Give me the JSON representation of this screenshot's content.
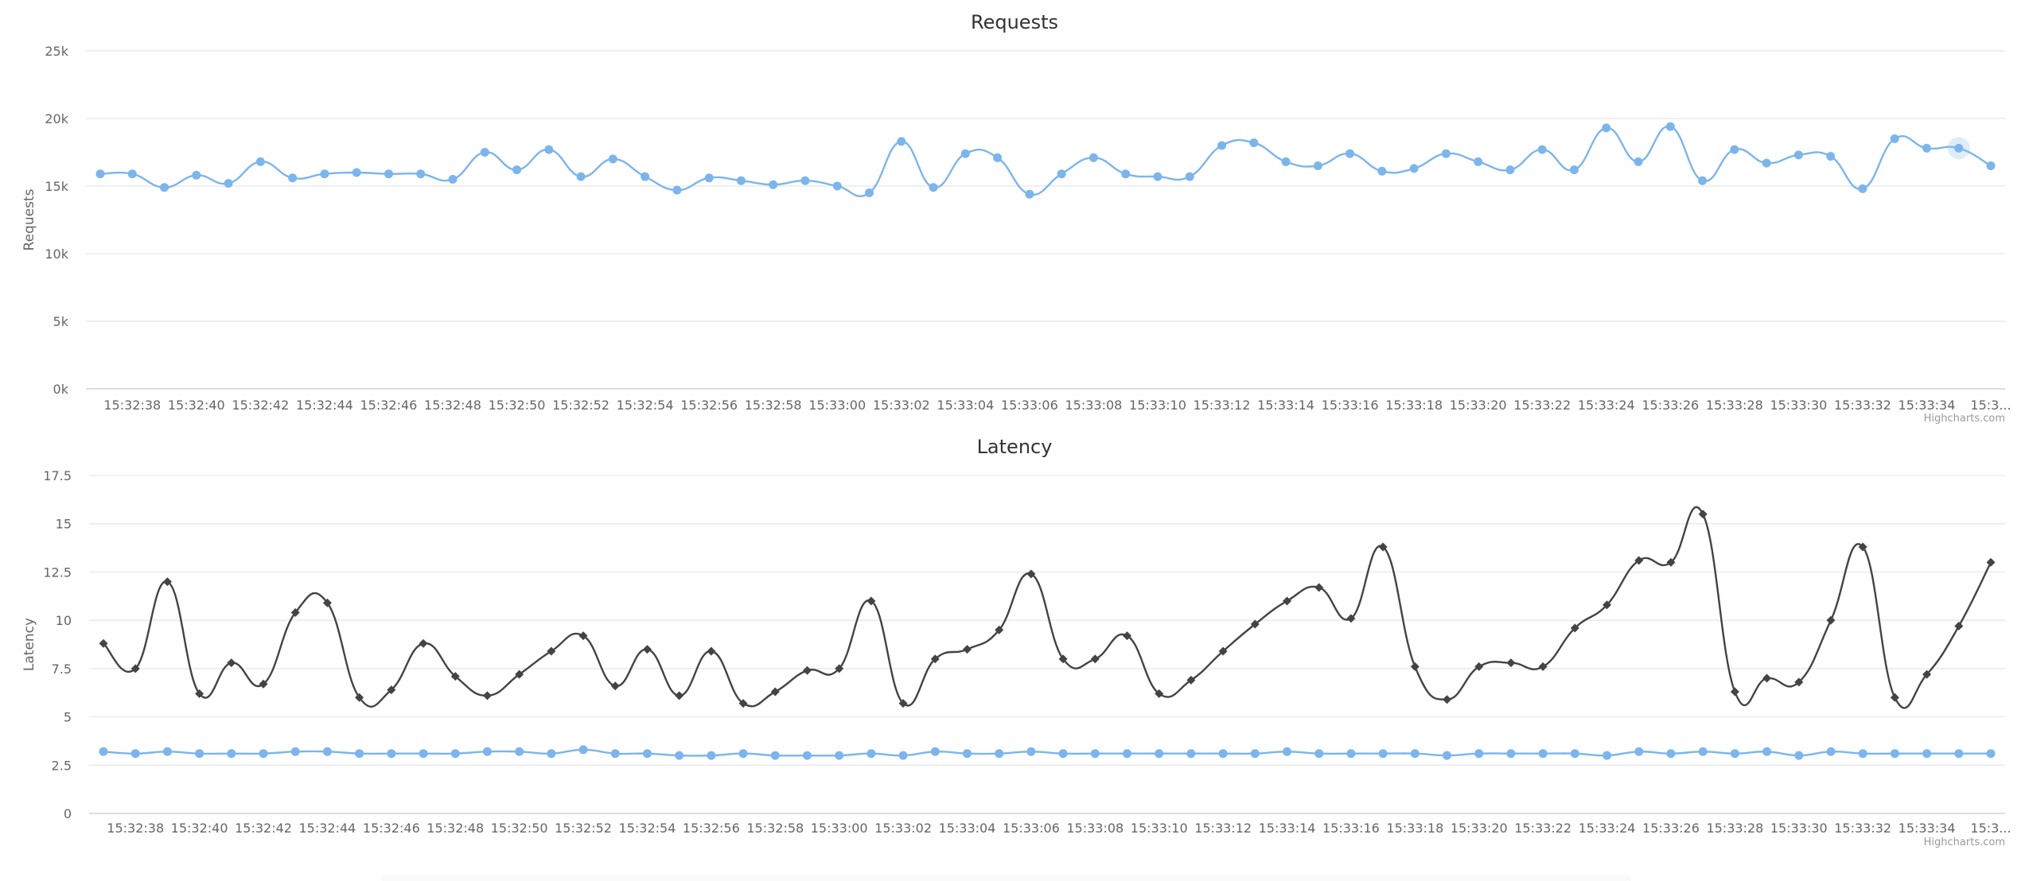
{
  "colors": {
    "requests_line": "#7cb5ec",
    "latency_dark": "#434348",
    "latency_light": "#7cb5ec",
    "grid": "#e6e6e6",
    "axis": "#ccd6eb",
    "hover_halo": "#7cb5ec"
  },
  "chart_data": [
    {
      "type": "line",
      "title": "Requests",
      "ylabel": "Requests",
      "ylim": [
        0,
        25000
      ],
      "ytick_values": [
        0,
        5000,
        10000,
        15000,
        20000,
        25000
      ],
      "ytick_labels": [
        "0k",
        "5k",
        "10k",
        "15k",
        "20k",
        "25k"
      ],
      "xtick_labels": [
        "15:32:38",
        "15:32:40",
        "15:32:42",
        "15:32:44",
        "15:32:46",
        "15:32:48",
        "15:32:50",
        "15:32:52",
        "15:32:54",
        "15:32:56",
        "15:32:58",
        "15:33:00",
        "15:33:02",
        "15:33:04",
        "15:33:06",
        "15:33:08",
        "15:33:10",
        "15:33:12",
        "15:33:14",
        "15:33:16",
        "15:33:18",
        "15:33:20",
        "15:33:22",
        "15:33:24",
        "15:33:26",
        "15:33:28",
        "15:33:30",
        "15:33:32",
        "15:33:34",
        "15:3..."
      ],
      "credits": "Highcharts.com",
      "grid": true,
      "smooth": true,
      "x_start": "15:32:37",
      "x_step_seconds": 1,
      "series": [
        {
          "marker": "circle",
          "hover_index": 58,
          "values": [
            15900,
            15900,
            14900,
            15800,
            15200,
            16800,
            15600,
            15900,
            16000,
            15900,
            15900,
            15500,
            17500,
            16200,
            17700,
            15700,
            17000,
            15700,
            14700,
            15600,
            15400,
            15100,
            15400,
            15000,
            14500,
            18300,
            14900,
            17400,
            17100,
            14400,
            15900,
            17100,
            15900,
            15700,
            15700,
            18000,
            18200,
            16800,
            16500,
            17400,
            16100,
            16300,
            17400,
            16800,
            16200,
            17700,
            16200,
            19300,
            16800,
            19400,
            15400,
            17700,
            16700,
            17300,
            17200,
            14800,
            18500,
            17800,
            17800,
            16500
          ]
        }
      ]
    },
    {
      "type": "line",
      "title": "Latency",
      "ylabel": "Latency",
      "ylim": [
        0,
        17.5
      ],
      "ytick_values": [
        0,
        2.5,
        5,
        7.5,
        10,
        12.5,
        15,
        17.5
      ],
      "ytick_labels": [
        "0",
        "2.5",
        "5",
        "7.5",
        "10",
        "12.5",
        "15",
        "17.5"
      ],
      "xtick_labels": [
        "15:32:38",
        "15:32:40",
        "15:32:42",
        "15:32:44",
        "15:32:46",
        "15:32:48",
        "15:32:50",
        "15:32:52",
        "15:32:54",
        "15:32:56",
        "15:32:58",
        "15:33:00",
        "15:33:02",
        "15:33:04",
        "15:33:06",
        "15:33:08",
        "15:33:10",
        "15:33:12",
        "15:33:14",
        "15:33:16",
        "15:33:18",
        "15:33:20",
        "15:33:22",
        "15:33:24",
        "15:33:26",
        "15:33:28",
        "15:33:30",
        "15:33:32",
        "15:33:34",
        "15:3..."
      ],
      "credits": "Highcharts.com",
      "grid": true,
      "smooth": true,
      "x_start": "15:32:37",
      "x_step_seconds": 1,
      "series": [
        {
          "marker": "diamond",
          "values": [
            8.8,
            7.5,
            12.0,
            6.2,
            7.8,
            6.7,
            10.4,
            10.9,
            6.0,
            6.4,
            8.8,
            7.1,
            6.1,
            7.2,
            8.4,
            9.2,
            6.6,
            8.5,
            6.1,
            8.4,
            5.7,
            6.3,
            7.4,
            7.5,
            11.0,
            5.7,
            8.0,
            8.5,
            9.5,
            12.4,
            8.0,
            8.0,
            9.2,
            6.2,
            6.9,
            8.4,
            9.8,
            11.0,
            11.7,
            10.1,
            13.8,
            7.6,
            5.9,
            7.6,
            7.8,
            7.6,
            9.6,
            10.8,
            13.1,
            13.0,
            15.5,
            6.3,
            7.0,
            6.8,
            10.0,
            13.8,
            6.0,
            7.2,
            9.7,
            13.0
          ]
        },
        {
          "marker": "circle",
          "values": [
            3.2,
            3.1,
            3.2,
            3.1,
            3.1,
            3.1,
            3.2,
            3.2,
            3.1,
            3.1,
            3.1,
            3.1,
            3.2,
            3.2,
            3.1,
            3.3,
            3.1,
            3.1,
            3.0,
            3.0,
            3.1,
            3.0,
            3.0,
            3.0,
            3.1,
            3.0,
            3.2,
            3.1,
            3.1,
            3.2,
            3.1,
            3.1,
            3.1,
            3.1,
            3.1,
            3.1,
            3.1,
            3.2,
            3.1,
            3.1,
            3.1,
            3.1,
            3.0,
            3.1,
            3.1,
            3.1,
            3.1,
            3.0,
            3.2,
            3.1,
            3.2,
            3.1,
            3.2,
            3.0,
            3.2,
            3.1,
            3.1,
            3.1,
            3.1,
            3.1
          ]
        }
      ]
    }
  ]
}
